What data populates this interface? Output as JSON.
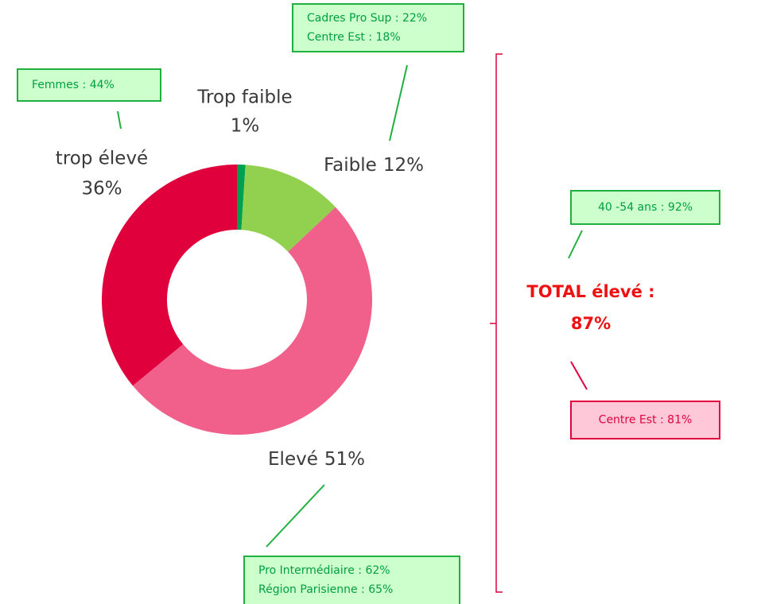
{
  "chart_data": {
    "type": "donut",
    "categories": [
      "Trop faible",
      "Faible",
      "Elevé",
      "trop élevé"
    ],
    "values": [
      1,
      12,
      51,
      36
    ],
    "value_labels": [
      "1%",
      "12%",
      "51%",
      "36%"
    ],
    "colors": [
      "#00a050",
      "#92d050",
      "#f0608a",
      "#e0003c"
    ],
    "annotations": [
      {
        "lines": [
          "Femmes : 44%"
        ]
      },
      {
        "lines": [
          "Cadres Pro Sup : 22%",
          "Centre Est : 18%"
        ]
      },
      {
        "lines": [
          "40 -54 ans : 92%"
        ]
      },
      {
        "lines": [
          "Pro Intermédiaire : 62%",
          "Région Parisienne : 65%"
        ]
      },
      {
        "lines": [
          "Centre Est : 81%"
        ]
      }
    ],
    "total": {
      "lines": [
        "TOTAL élevé :",
        "87%"
      ]
    }
  }
}
